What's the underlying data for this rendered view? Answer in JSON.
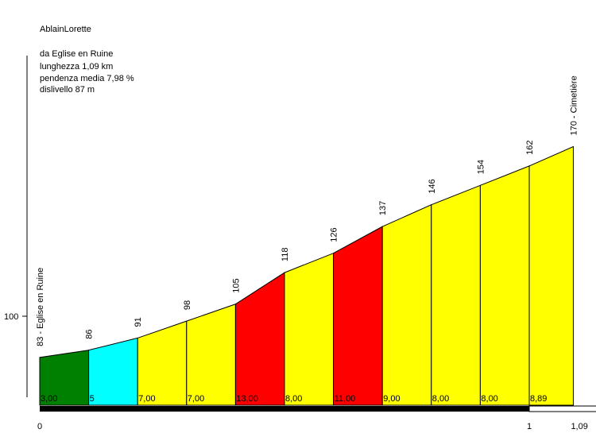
{
  "header": {
    "title": "AblainLorette",
    "start_label": "da Eglise en Ruine",
    "length_label": "lunghezza 1,09 km",
    "gradient_label": "pendenza media 7,98 %",
    "climb_label": "dislivello 87 m"
  },
  "chart_data": {
    "type": "area",
    "title": "AblainLorette",
    "xlabel": "",
    "ylabel": "",
    "x_ticks": [
      "0",
      "1",
      "1,09"
    ],
    "y_ticks": [
      "100"
    ],
    "xlim": [
      0,
      1.09
    ],
    "ylim": [
      65,
      187
    ],
    "points": [
      {
        "x": 0.0,
        "y": 83,
        "label": "83 - Eglise en Ruine"
      },
      {
        "x": 0.1,
        "y": 86,
        "label": "86"
      },
      {
        "x": 0.2,
        "y": 91,
        "label": "91"
      },
      {
        "x": 0.3,
        "y": 98,
        "label": "98"
      },
      {
        "x": 0.4,
        "y": 105,
        "label": "105"
      },
      {
        "x": 0.5,
        "y": 118,
        "label": "118"
      },
      {
        "x": 0.6,
        "y": 126,
        "label": "126"
      },
      {
        "x": 0.7,
        "y": 137,
        "label": "137"
      },
      {
        "x": 0.8,
        "y": 146,
        "label": "146"
      },
      {
        "x": 0.9,
        "y": 154,
        "label": "154"
      },
      {
        "x": 1.0,
        "y": 162,
        "label": "162"
      },
      {
        "x": 1.09,
        "y": 170,
        "label": "170 - Cimetière"
      }
    ],
    "segments": [
      {
        "gradient": "3,00",
        "color": "#008000"
      },
      {
        "gradient": "5",
        "color": "#00ffff"
      },
      {
        "gradient": "7,00",
        "color": "#ffff00"
      },
      {
        "gradient": "7,00",
        "color": "#ffff00"
      },
      {
        "gradient": "13,00",
        "color": "#ff0000"
      },
      {
        "gradient": "8,00",
        "color": "#ffff00"
      },
      {
        "gradient": "11,00",
        "color": "#ff0000"
      },
      {
        "gradient": "9,00",
        "color": "#ffff00"
      },
      {
        "gradient": "8,00",
        "color": "#ffff00"
      },
      {
        "gradient": "8,00",
        "color": "#ffff00"
      },
      {
        "gradient": "8,89",
        "color": "#ffff00"
      }
    ]
  }
}
